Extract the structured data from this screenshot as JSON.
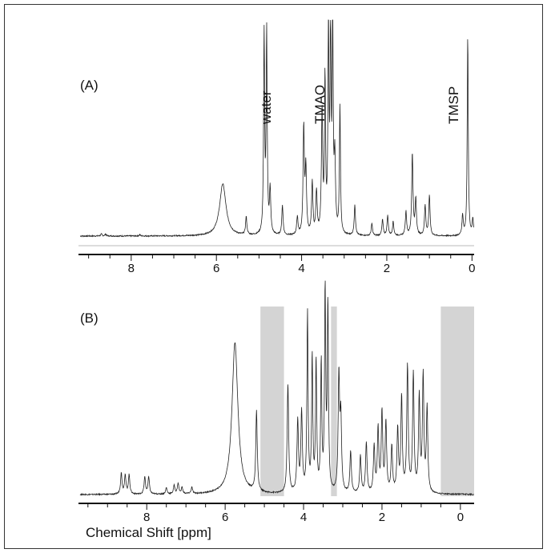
{
  "chart_data": [
    {
      "type": "line",
      "panel_label": "(A)",
      "xlabel": "",
      "ylabel": "",
      "xlim": [
        9.2,
        -0.05
      ],
      "x_reversed": true,
      "xticks": [
        8,
        6,
        4,
        2,
        0
      ],
      "annotations": [
        {
          "text": "water",
          "x": 5.0
        },
        {
          "text": "TMAO",
          "x": 3.8
        },
        {
          "text": "TMSP",
          "x": 0.25
        }
      ],
      "peaks": [
        {
          "x": 8.7,
          "y": 0.01
        },
        {
          "x": 8.6,
          "y": 0.01
        },
        {
          "x": 7.8,
          "y": 0.006
        },
        {
          "x": 5.85,
          "y": 0.26
        },
        {
          "x": 5.3,
          "y": 0.09
        },
        {
          "x": 4.88,
          "y": 1.0
        },
        {
          "x": 4.82,
          "y": 1.0
        },
        {
          "x": 4.74,
          "y": 0.22
        },
        {
          "x": 4.45,
          "y": 0.15
        },
        {
          "x": 4.1,
          "y": 0.09
        },
        {
          "x": 3.95,
          "y": 0.53
        },
        {
          "x": 3.9,
          "y": 0.32
        },
        {
          "x": 3.75,
          "y": 0.26
        },
        {
          "x": 3.65,
          "y": 0.21
        },
        {
          "x": 3.52,
          "y": 0.6
        },
        {
          "x": 3.45,
          "y": 0.76
        },
        {
          "x": 3.37,
          "y": 1.0
        },
        {
          "x": 3.32,
          "y": 1.0
        },
        {
          "x": 3.27,
          "y": 1.0
        },
        {
          "x": 3.22,
          "y": 0.36
        },
        {
          "x": 3.1,
          "y": 0.64
        },
        {
          "x": 2.75,
          "y": 0.15
        },
        {
          "x": 2.35,
          "y": 0.06
        },
        {
          "x": 2.1,
          "y": 0.08
        },
        {
          "x": 1.98,
          "y": 0.1
        },
        {
          "x": 1.85,
          "y": 0.07
        },
        {
          "x": 1.55,
          "y": 0.12
        },
        {
          "x": 1.4,
          "y": 0.41
        },
        {
          "x": 1.32,
          "y": 0.18
        },
        {
          "x": 1.1,
          "y": 0.15
        },
        {
          "x": 1.0,
          "y": 0.2
        },
        {
          "x": 0.22,
          "y": 0.1
        },
        {
          "x": 0.1,
          "y": 1.0
        },
        {
          "x": -0.02,
          "y": 0.08
        }
      ]
    },
    {
      "type": "line",
      "panel_label": "(B)",
      "xlabel": "Chemical Shift [ppm]",
      "ylabel": "",
      "xlim": [
        9.7,
        -0.35
      ],
      "x_reversed": true,
      "xticks": [
        8,
        6,
        4,
        2,
        0
      ],
      "excluded_regions": [
        {
          "from": 5.1,
          "to": 4.5
        },
        {
          "from": 3.3,
          "to": 3.15
        },
        {
          "from": 0.5,
          "to": -0.35
        }
      ],
      "peaks": [
        {
          "x": 8.65,
          "y": 0.1
        },
        {
          "x": 8.55,
          "y": 0.09
        },
        {
          "x": 8.45,
          "y": 0.09
        },
        {
          "x": 8.05,
          "y": 0.08
        },
        {
          "x": 7.95,
          "y": 0.08
        },
        {
          "x": 7.5,
          "y": 0.03
        },
        {
          "x": 7.3,
          "y": 0.04
        },
        {
          "x": 7.2,
          "y": 0.05
        },
        {
          "x": 7.1,
          "y": 0.03
        },
        {
          "x": 6.85,
          "y": 0.03
        },
        {
          "x": 5.75,
          "y": 0.72
        },
        {
          "x": 5.2,
          "y": 0.38
        },
        {
          "x": 4.4,
          "y": 0.52
        },
        {
          "x": 4.15,
          "y": 0.34
        },
        {
          "x": 4.05,
          "y": 0.38
        },
        {
          "x": 3.9,
          "y": 0.85
        },
        {
          "x": 3.78,
          "y": 0.64
        },
        {
          "x": 3.68,
          "y": 0.62
        },
        {
          "x": 3.55,
          "y": 0.61
        },
        {
          "x": 3.45,
          "y": 0.95
        },
        {
          "x": 3.38,
          "y": 0.88
        },
        {
          "x": 3.1,
          "y": 0.55
        },
        {
          "x": 3.05,
          "y": 0.34
        },
        {
          "x": 2.8,
          "y": 0.2
        },
        {
          "x": 2.55,
          "y": 0.18
        },
        {
          "x": 2.4,
          "y": 0.24
        },
        {
          "x": 2.2,
          "y": 0.22
        },
        {
          "x": 2.1,
          "y": 0.3
        },
        {
          "x": 2.0,
          "y": 0.38
        },
        {
          "x": 1.9,
          "y": 0.33
        },
        {
          "x": 1.75,
          "y": 0.22
        },
        {
          "x": 1.6,
          "y": 0.3
        },
        {
          "x": 1.5,
          "y": 0.45
        },
        {
          "x": 1.35,
          "y": 0.6
        },
        {
          "x": 1.2,
          "y": 0.56
        },
        {
          "x": 1.05,
          "y": 0.45
        },
        {
          "x": 0.95,
          "y": 0.55
        },
        {
          "x": 0.85,
          "y": 0.4
        }
      ]
    }
  ]
}
